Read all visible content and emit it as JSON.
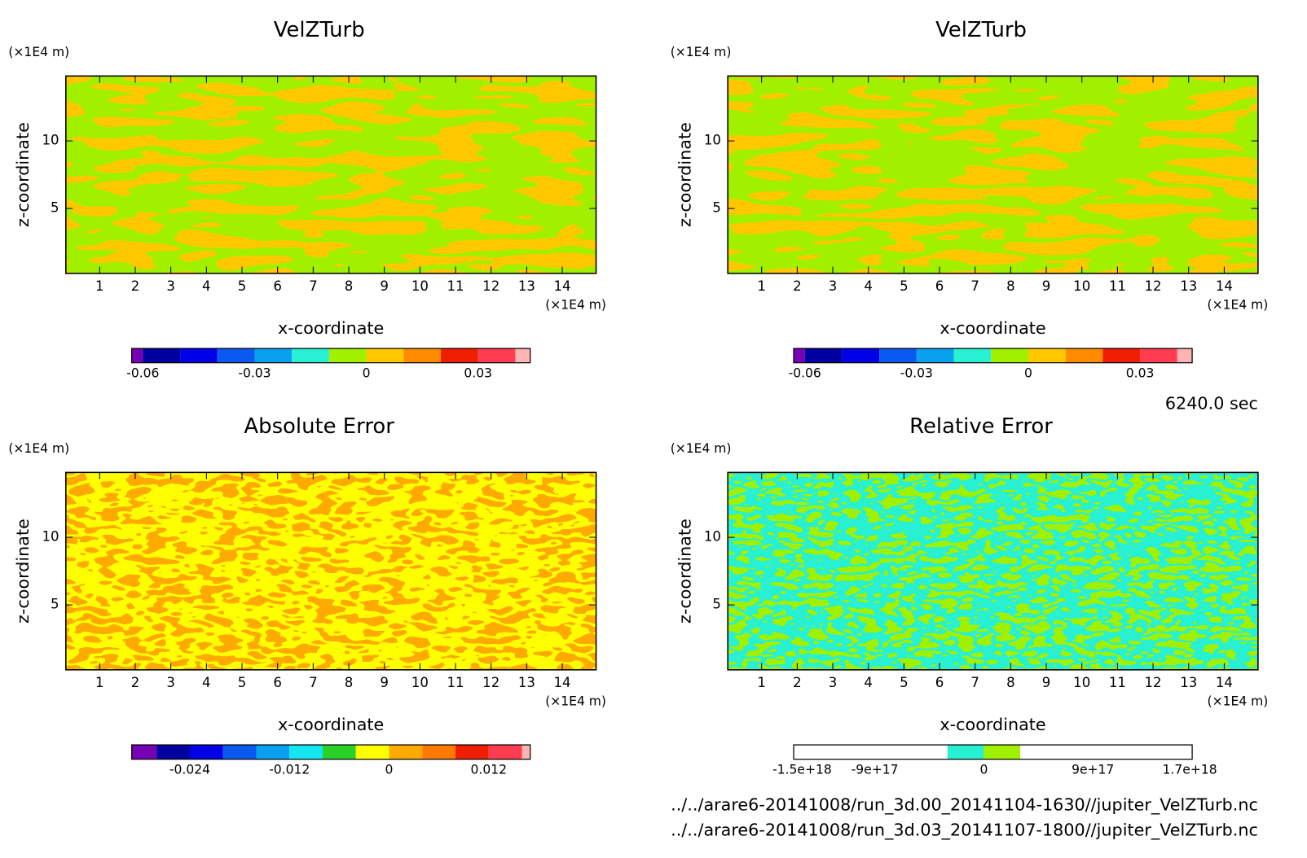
{
  "chart_data": [
    {
      "type": "contour",
      "title": "VelZTurb",
      "xlabel": "x-coordinate",
      "ylabel": "z-coordinate",
      "xunit": "(×1E4 m)",
      "yunit": "(×1E4 m)",
      "xlim": [
        0.05,
        14.95
      ],
      "ylim": [
        0.2,
        14.8
      ],
      "xticks": [
        1,
        2,
        3,
        4,
        5,
        6,
        7,
        8,
        9,
        10,
        11,
        12,
        13,
        14
      ],
      "yticks": [
        5,
        10
      ],
      "field_colors": [
        "#ffc800",
        "#a0f000"
      ],
      "colorbar": {
        "clim": [
          -0.063,
          0.044
        ],
        "levels": [
          -0.06,
          -0.05,
          -0.04,
          -0.03,
          -0.02,
          -0.01,
          0,
          0.01,
          0.02,
          0.03,
          0.04
        ],
        "colors": [
          "#7800b4",
          "#0000a0",
          "#0000e6",
          "#0a5af0",
          "#0aa0f0",
          "#28f0d2",
          "#a0f000",
          "#ffc800",
          "#ff8c00",
          "#f01e00",
          "#ff3c50",
          "#ffb4b4"
        ],
        "ticks": [
          -0.06,
          -0.03,
          0,
          0.03
        ]
      }
    },
    {
      "type": "contour",
      "title": "VelZTurb",
      "xlabel": "x-coordinate",
      "ylabel": "z-coordinate",
      "xunit": "(×1E4 m)",
      "yunit": "(×1E4 m)",
      "xlim": [
        0.05,
        14.95
      ],
      "ylim": [
        0.2,
        14.8
      ],
      "xticks": [
        1,
        2,
        3,
        4,
        5,
        6,
        7,
        8,
        9,
        10,
        11,
        12,
        13,
        14
      ],
      "yticks": [
        5,
        10
      ],
      "field_colors": [
        "#ffc800",
        "#a0f000"
      ],
      "colorbar": {
        "clim": [
          -0.063,
          0.044
        ],
        "levels": [
          -0.06,
          -0.05,
          -0.04,
          -0.03,
          -0.02,
          -0.01,
          0,
          0.01,
          0.02,
          0.03,
          0.04
        ],
        "colors": [
          "#7800b4",
          "#0000a0",
          "#0000e6",
          "#0a5af0",
          "#0aa0f0",
          "#28f0d2",
          "#a0f000",
          "#ffc800",
          "#ff8c00",
          "#f01e00",
          "#ff3c50",
          "#ffb4b4"
        ],
        "ticks": [
          -0.06,
          -0.03,
          0,
          0.03
        ]
      }
    },
    {
      "type": "contour",
      "title": "Absolute Error",
      "xlabel": "x-coordinate",
      "ylabel": "z-coordinate",
      "xunit": "(×1E4 m)",
      "yunit": "(×1E4 m)",
      "xlim": [
        0.05,
        14.95
      ],
      "ylim": [
        0.2,
        14.8
      ],
      "xticks": [
        1,
        2,
        3,
        4,
        5,
        6,
        7,
        8,
        9,
        10,
        11,
        12,
        13,
        14
      ],
      "yticks": [
        5,
        10
      ],
      "field_colors": [
        "#ffaa00",
        "#ffff00"
      ],
      "colorbar": {
        "clim": [
          -0.031,
          0.017
        ],
        "levels": [
          -0.028,
          -0.024,
          -0.02,
          -0.016,
          -0.012,
          -0.008,
          -0.004,
          0,
          0.004,
          0.008,
          0.012,
          0.016
        ],
        "colors": [
          "#7800b4",
          "#0000a0",
          "#0000e6",
          "#0a5af0",
          "#0aa0f0",
          "#14e6f0",
          "#28d228",
          "#ffff00",
          "#ffaa00",
          "#ff7800",
          "#f01e00",
          "#ff3c50",
          "#ffb4b4"
        ],
        "ticks": [
          -0.024,
          -0.012,
          0,
          0.012
        ]
      }
    },
    {
      "type": "contour",
      "title": "Relative Error",
      "xlabel": "x-coordinate",
      "ylabel": "z-coordinate",
      "xunit": "(×1E4 m)",
      "yunit": "(×1E4 m)",
      "xlim": [
        0.05,
        14.95
      ],
      "ylim": [
        0.2,
        14.8
      ],
      "xticks": [
        1,
        2,
        3,
        4,
        5,
        6,
        7,
        8,
        9,
        10,
        11,
        12,
        13,
        14
      ],
      "yticks": [
        5,
        10
      ],
      "field_colors": [
        "#a0f000",
        "#28f0d2"
      ],
      "colorbar": {
        "clim": [
          -1.57e+18,
          1.72e+18
        ],
        "levels": [
          -1.5e+18,
          -1.2e+18,
          -9e+17,
          -6e+17,
          -3e+17,
          0,
          3e+17,
          6e+17,
          9e+17,
          1.2e+18,
          1.5e+18
        ],
        "colors": [
          "#ffffff",
          "#ffffff",
          "#ffffff",
          "#ffffff",
          "#ffffff",
          "#28f0d2",
          "#a0f000",
          "#ffffff",
          "#ffffff",
          "#ffffff",
          "#ffffff",
          "#ffffff"
        ],
        "ticks": [
          {
            "value": -1.5e+18,
            "label": "-1.5e+18"
          },
          {
            "value": -9e+17,
            "label": "-9e+17"
          },
          0,
          {
            "value": 9e+17,
            "label": "9e+17"
          },
          {
            "value": 1.7e+18,
            "label": "1.7e+18"
          }
        ]
      }
    }
  ],
  "time_label": "6240.0 sec",
  "files": [
    "../../arare6-20141008/run_3d.00_20141104-1630//jupiter_VelZTurb.nc",
    "../../arare6-20141008/run_3d.03_20141107-1800//jupiter_VelZTurb.nc"
  ]
}
